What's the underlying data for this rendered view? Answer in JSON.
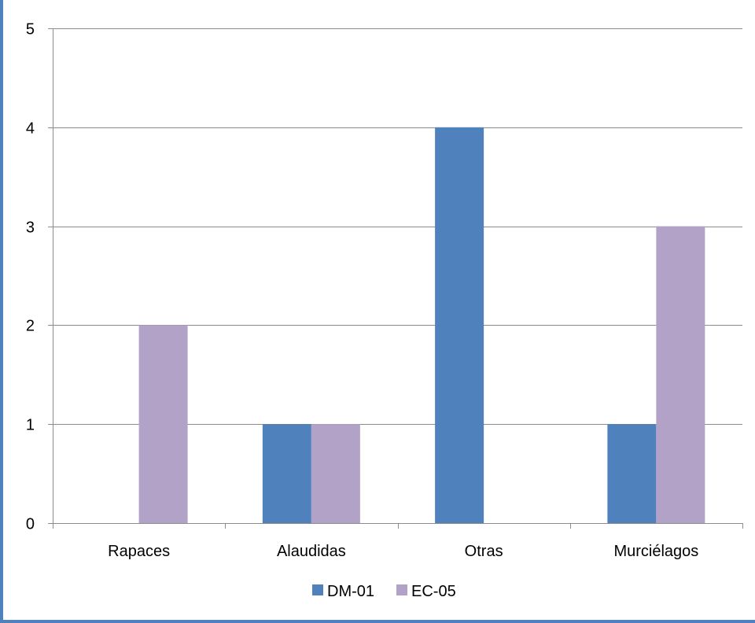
{
  "chart_data": {
    "type": "bar",
    "categories": [
      "Rapaces",
      "Alaudidas",
      "Otras",
      "Murciélagos"
    ],
    "series": [
      {
        "name": "DM-01",
        "values": [
          0,
          1,
          4,
          1
        ],
        "color": "#4f81bd"
      },
      {
        "name": "EC-05",
        "values": [
          2,
          1,
          0,
          3
        ],
        "color": "#b3a2c7"
      }
    ],
    "ylim": [
      0,
      5
    ],
    "yticks": [
      0,
      1,
      2,
      3,
      4,
      5
    ],
    "grid": true,
    "legend_position": "bottom",
    "title": "",
    "xlabel": "",
    "ylabel": ""
  }
}
